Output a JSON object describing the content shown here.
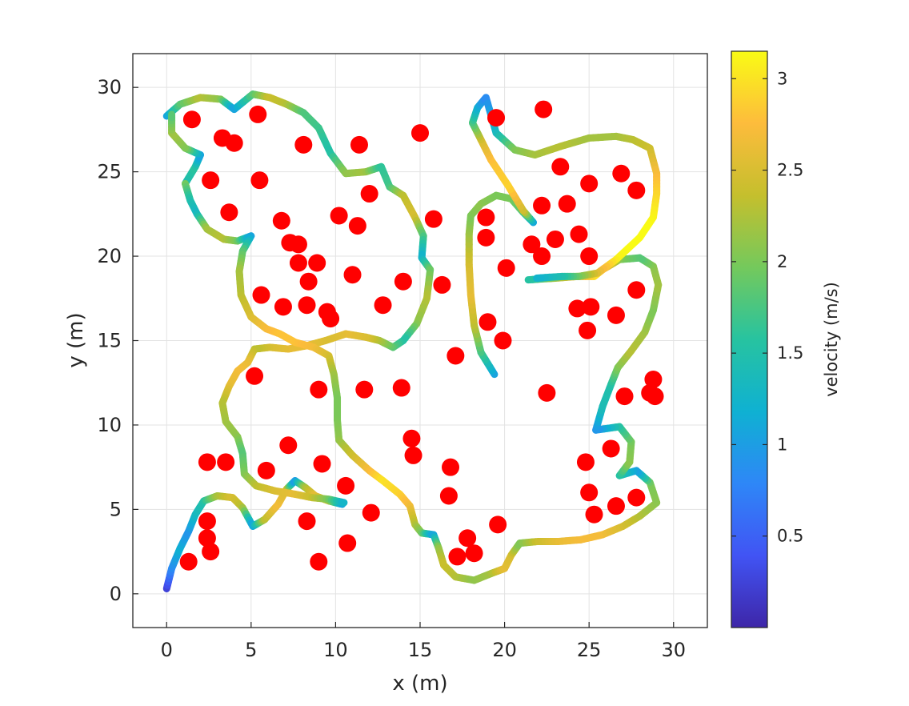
{
  "chart_data": {
    "type": "scatter",
    "xlabel": "x (m)",
    "ylabel": "y (m)",
    "xlim": [
      -2,
      32
    ],
    "ylim": [
      -2,
      32
    ],
    "xticks": [
      "0",
      "5",
      "10",
      "15",
      "20",
      "25",
      "30"
    ],
    "yticks": [
      "0",
      "5",
      "10",
      "15",
      "20",
      "25",
      "30"
    ],
    "grid": true,
    "colorbar": {
      "label": "velocity (m/s)",
      "range": [
        0,
        3.15
      ],
      "ticks": [
        "0.5",
        "1",
        "1.5",
        "2",
        "2.5",
        "3"
      ],
      "colormap": [
        "#3e26a8",
        "#4154f4",
        "#2e87f7",
        "#0fb1d2",
        "#27c3a0",
        "#74c95c",
        "#c5bf2d",
        "#fdbc3c",
        "#f9fb15"
      ]
    },
    "obstacle_color": "#ff0000",
    "obstacles": [
      [
        1.5,
        28.1
      ],
      [
        5.4,
        28.4
      ],
      [
        3.3,
        27.0
      ],
      [
        4.0,
        26.7
      ],
      [
        8.1,
        26.6
      ],
      [
        11.4,
        26.6
      ],
      [
        15.0,
        27.3
      ],
      [
        2.6,
        24.5
      ],
      [
        5.5,
        24.5
      ],
      [
        12.0,
        23.7
      ],
      [
        3.7,
        22.6
      ],
      [
        6.8,
        22.1
      ],
      [
        10.2,
        22.4
      ],
      [
        11.3,
        21.8
      ],
      [
        15.8,
        22.2
      ],
      [
        7.3,
        20.8
      ],
      [
        7.8,
        20.7
      ],
      [
        7.8,
        19.6
      ],
      [
        8.9,
        19.6
      ],
      [
        8.4,
        18.5
      ],
      [
        11.0,
        18.9
      ],
      [
        14.0,
        18.5
      ],
      [
        16.3,
        18.3
      ],
      [
        5.6,
        17.7
      ],
      [
        6.9,
        17.0
      ],
      [
        8.3,
        17.1
      ],
      [
        9.5,
        16.7
      ],
      [
        9.7,
        16.3
      ],
      [
        12.8,
        17.1
      ],
      [
        5.2,
        12.9
      ],
      [
        9.0,
        12.1
      ],
      [
        11.7,
        12.1
      ],
      [
        13.9,
        12.2
      ],
      [
        7.2,
        8.8
      ],
      [
        2.4,
        7.8
      ],
      [
        3.5,
        7.8
      ],
      [
        5.9,
        7.3
      ],
      [
        9.2,
        7.7
      ],
      [
        10.6,
        6.4
      ],
      [
        14.5,
        9.2
      ],
      [
        14.6,
        8.2
      ],
      [
        12.1,
        4.8
      ],
      [
        2.4,
        4.3
      ],
      [
        2.4,
        3.3
      ],
      [
        2.6,
        2.5
      ],
      [
        8.3,
        4.3
      ],
      [
        10.7,
        3.0
      ],
      [
        1.3,
        1.9
      ],
      [
        9.0,
        1.9
      ],
      [
        17.1,
        14.1
      ],
      [
        16.8,
        7.5
      ],
      [
        16.7,
        5.8
      ],
      [
        17.8,
        3.3
      ],
      [
        17.2,
        2.2
      ],
      [
        18.2,
        2.4
      ],
      [
        19.6,
        4.1
      ],
      [
        19.5,
        28.2
      ],
      [
        22.3,
        28.7
      ],
      [
        23.3,
        25.3
      ],
      [
        25.0,
        24.3
      ],
      [
        26.9,
        24.9
      ],
      [
        27.8,
        23.9
      ],
      [
        18.9,
        22.3
      ],
      [
        18.9,
        21.1
      ],
      [
        22.2,
        23.0
      ],
      [
        23.7,
        23.1
      ],
      [
        21.6,
        20.7
      ],
      [
        22.2,
        20.0
      ],
      [
        23.0,
        21.0
      ],
      [
        24.4,
        21.3
      ],
      [
        25.0,
        20.0
      ],
      [
        20.1,
        19.3
      ],
      [
        19.0,
        16.1
      ],
      [
        19.9,
        15.0
      ],
      [
        24.3,
        16.9
      ],
      [
        25.1,
        17.0
      ],
      [
        24.9,
        15.6
      ],
      [
        26.6,
        16.5
      ],
      [
        27.8,
        18.0
      ],
      [
        22.5,
        11.9
      ],
      [
        27.1,
        11.7
      ],
      [
        28.8,
        12.7
      ],
      [
        28.6,
        11.9
      ],
      [
        28.9,
        11.7
      ],
      [
        24.8,
        7.8
      ],
      [
        26.3,
        8.6
      ],
      [
        25.0,
        6.0
      ],
      [
        25.3,
        4.7
      ],
      [
        26.6,
        5.2
      ],
      [
        27.8,
        5.7
      ]
    ],
    "paths": [
      {
        "points": [
          [
            0.0,
            0.3
          ],
          [
            0.3,
            1.5
          ],
          [
            0.8,
            2.7
          ],
          [
            1.3,
            3.7
          ],
          [
            1.7,
            4.7
          ],
          [
            2.2,
            5.5
          ],
          [
            3.0,
            5.8
          ],
          [
            3.9,
            5.7
          ],
          [
            4.5,
            5.1
          ],
          [
            5.1,
            4.0
          ],
          [
            5.8,
            4.4
          ],
          [
            6.6,
            5.3
          ],
          [
            7.1,
            6.2
          ],
          [
            7.6,
            6.7
          ],
          [
            8.2,
            6.3
          ],
          [
            8.8,
            5.8
          ],
          [
            9.6,
            5.5
          ],
          [
            10.4,
            5.3
          ]
        ],
        "speeds": [
          0.2,
          0.8,
          1.2,
          0.9,
          1.3,
          1.5,
          2.2,
          2.5,
          2.3,
          1.0,
          2.3,
          2.7,
          2.5,
          0.9,
          2.2,
          2.6,
          2.3,
          1.0
        ]
      },
      {
        "points": [
          [
            0.0,
            28.3
          ],
          [
            0.8,
            29.0
          ],
          [
            2.0,
            29.4
          ],
          [
            3.2,
            29.3
          ],
          [
            4.0,
            28.7
          ],
          [
            5.1,
            29.6
          ],
          [
            6.1,
            29.4
          ],
          [
            7.1,
            29.0
          ],
          [
            8.1,
            28.5
          ],
          [
            9.0,
            27.6
          ],
          [
            9.7,
            26.1
          ],
          [
            10.6,
            24.9
          ],
          [
            11.8,
            25.0
          ],
          [
            12.7,
            25.3
          ],
          [
            13.2,
            24.1
          ],
          [
            14.0,
            23.6
          ],
          [
            14.7,
            22.3
          ],
          [
            15.2,
            21.2
          ],
          [
            15.1,
            19.9
          ],
          [
            15.6,
            19.2
          ],
          [
            15.4,
            17.5
          ],
          [
            14.8,
            16.0
          ],
          [
            14.0,
            15.0
          ],
          [
            13.4,
            14.6
          ],
          [
            12.6,
            15.0
          ],
          [
            11.8,
            15.2
          ],
          [
            10.6,
            15.4
          ],
          [
            9.4,
            15.0
          ],
          [
            8.3,
            14.7
          ],
          [
            7.2,
            14.5
          ],
          [
            6.1,
            14.6
          ],
          [
            5.2,
            14.5
          ],
          [
            4.8,
            13.7
          ],
          [
            4.2,
            13.2
          ],
          [
            3.7,
            12.3
          ],
          [
            3.3,
            11.3
          ],
          [
            3.5,
            10.2
          ],
          [
            4.2,
            9.3
          ],
          [
            4.5,
            8.3
          ],
          [
            4.6,
            7.1
          ],
          [
            5.3,
            6.4
          ],
          [
            6.4,
            6.1
          ],
          [
            7.6,
            5.9
          ],
          [
            8.6,
            5.7
          ],
          [
            9.6,
            5.6
          ],
          [
            10.5,
            5.4
          ]
        ],
        "speeds": [
          1.0,
          1.8,
          2.3,
          2.1,
          1.0,
          1.8,
          2.4,
          2.3,
          1.8,
          1.7,
          1.5,
          2.1,
          2.2,
          1.6,
          1.7,
          2.3,
          2.5,
          1.8,
          1.2,
          1.9,
          2.3,
          2.1,
          1.5,
          1.8,
          2.2,
          2.5,
          2.6,
          2.5,
          2.6,
          2.6,
          2.5,
          2.3,
          2.6,
          2.7,
          2.6,
          2.3,
          2.2,
          2.1,
          1.8,
          2.0,
          2.3,
          2.5,
          2.6,
          2.4,
          2.0,
          1.2
        ]
      },
      {
        "points": [
          [
            1.1,
            24.3
          ],
          [
            1.7,
            25.3
          ],
          [
            2.0,
            26.0
          ],
          [
            1.1,
            26.4
          ],
          [
            0.3,
            27.3
          ],
          [
            0.3,
            28.4
          ]
        ],
        "speeds": [
          1.4,
          1.6,
          1.0,
          2.0,
          2.2,
          1.8
        ]
      },
      {
        "points": [
          [
            1.1,
            24.3
          ],
          [
            1.4,
            23.3
          ],
          [
            1.8,
            22.5
          ],
          [
            2.4,
            21.6
          ],
          [
            3.4,
            21.0
          ],
          [
            4.2,
            20.9
          ],
          [
            5.0,
            21.2
          ],
          [
            4.5,
            20.3
          ],
          [
            4.3,
            19.1
          ],
          [
            4.4,
            17.7
          ],
          [
            5.0,
            16.4
          ],
          [
            5.9,
            15.7
          ],
          [
            6.7,
            15.4
          ],
          [
            7.6,
            14.9
          ],
          [
            8.7,
            14.6
          ],
          [
            9.6,
            14.1
          ],
          [
            9.9,
            13.0
          ],
          [
            10.1,
            11.6
          ],
          [
            10.1,
            10.3
          ],
          [
            10.2,
            9.1
          ],
          [
            11.0,
            8.2
          ],
          [
            12.0,
            7.3
          ],
          [
            12.8,
            6.7
          ],
          [
            13.8,
            5.9
          ],
          [
            14.4,
            5.2
          ],
          [
            14.7,
            4.1
          ],
          [
            15.1,
            3.6
          ],
          [
            15.8,
            3.5
          ]
        ],
        "speeds": [
          2.0,
          1.5,
          1.3,
          2.2,
          2.3,
          2.0,
          1.0,
          1.8,
          2.2,
          2.3,
          2.5,
          2.7,
          2.8,
          2.8,
          2.7,
          2.5,
          2.2,
          2.0,
          2.0,
          2.1,
          2.4,
          2.7,
          3.0,
          2.9,
          2.7,
          2.3,
          2.0,
          1.0
        ]
      },
      {
        "points": [
          [
            15.8,
            3.5
          ],
          [
            16.1,
            2.7
          ],
          [
            16.4,
            1.7
          ],
          [
            17.1,
            1.0
          ],
          [
            18.2,
            0.8
          ],
          [
            19.2,
            1.2
          ],
          [
            20.0,
            1.5
          ],
          [
            20.4,
            2.3
          ],
          [
            20.9,
            3.0
          ],
          [
            22.0,
            3.1
          ],
          [
            23.2,
            3.1
          ],
          [
            24.5,
            3.2
          ],
          [
            25.8,
            3.5
          ],
          [
            27.0,
            4.0
          ],
          [
            28.0,
            4.6
          ],
          [
            29.0,
            5.4
          ],
          [
            28.6,
            6.6
          ],
          [
            27.8,
            7.3
          ],
          [
            26.8,
            7.0
          ],
          [
            27.4,
            7.8
          ],
          [
            27.5,
            9.0
          ],
          [
            26.8,
            9.9
          ],
          [
            25.4,
            9.7
          ],
          [
            25.8,
            11.1
          ],
          [
            26.3,
            12.4
          ],
          [
            26.7,
            13.4
          ],
          [
            27.5,
            14.4
          ],
          [
            28.3,
            15.5
          ],
          [
            28.8,
            16.8
          ],
          [
            29.1,
            18.3
          ],
          [
            28.8,
            19.4
          ],
          [
            28.0,
            19.9
          ],
          [
            26.8,
            19.8
          ],
          [
            25.8,
            19.2
          ],
          [
            25.3,
            18.8
          ],
          [
            24.3,
            18.8
          ],
          [
            23.0,
            18.7
          ],
          [
            21.4,
            18.6
          ]
        ],
        "speeds": [
          1.0,
          2.1,
          2.4,
          2.3,
          2.1,
          2.2,
          2.6,
          2.5,
          2.0,
          2.4,
          2.6,
          2.7,
          2.7,
          2.5,
          2.3,
          2.1,
          2.0,
          1.0,
          1.5,
          2.1,
          2.0,
          1.6,
          0.9,
          1.4,
          1.5,
          2.0,
          2.3,
          2.2,
          2.0,
          2.2,
          2.1,
          1.8,
          2.0,
          2.8,
          3.0,
          2.6,
          2.2,
          1.5
        ]
      },
      {
        "points": [
          [
            19.4,
            13.0
          ],
          [
            18.6,
            14.3
          ],
          [
            18.2,
            15.9
          ],
          [
            18.0,
            17.7
          ],
          [
            17.9,
            19.5
          ],
          [
            17.9,
            21.3
          ],
          [
            18.0,
            22.4
          ],
          [
            18.6,
            23.1
          ],
          [
            19.5,
            23.6
          ],
          [
            20.4,
            23.4
          ],
          [
            21.1,
            22.6
          ],
          [
            21.7,
            22.0
          ]
        ],
        "speeds": [
          1.0,
          1.7,
          2.3,
          2.6,
          2.5,
          2.2,
          2.0,
          2.1,
          2.0,
          2.0,
          1.8,
          1.0
        ]
      },
      {
        "points": [
          [
            21.7,
            22.0
          ],
          [
            21.1,
            22.7
          ],
          [
            20.2,
            24.2
          ],
          [
            19.2,
            25.7
          ],
          [
            18.6,
            26.9
          ],
          [
            18.1,
            27.9
          ],
          [
            18.4,
            28.8
          ],
          [
            18.9,
            29.4
          ],
          [
            19.5,
            27.3
          ],
          [
            20.6,
            26.3
          ],
          [
            21.8,
            26.0
          ],
          [
            23.3,
            26.5
          ],
          [
            25.0,
            27.0
          ],
          [
            26.6,
            27.1
          ],
          [
            27.6,
            26.9
          ],
          [
            28.6,
            26.4
          ],
          [
            29.0,
            24.9
          ],
          [
            29.0,
            23.7
          ],
          [
            28.8,
            22.3
          ],
          [
            28.0,
            21.1
          ],
          [
            26.6,
            19.8
          ],
          [
            25.5,
            19.0
          ],
          [
            24.4,
            18.8
          ],
          [
            23.4,
            18.8
          ],
          [
            21.9,
            18.7
          ]
        ],
        "speeds": [
          1.0,
          2.4,
          2.9,
          2.8,
          2.5,
          1.8,
          1.2,
          0.8,
          1.3,
          2.0,
          2.2,
          2.3,
          2.2,
          2.2,
          2.3,
          2.4,
          2.7,
          2.9,
          3.1,
          3.2,
          3.1,
          2.6,
          2.0,
          1.5,
          1.2
        ]
      }
    ]
  }
}
